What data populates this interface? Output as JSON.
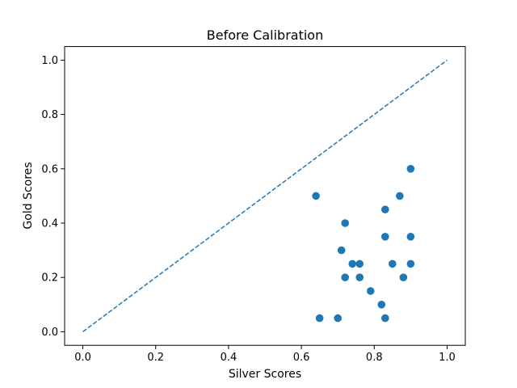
{
  "chart_data": {
    "type": "scatter",
    "title": "Before Calibration",
    "xlabel": "Silver Scores",
    "ylabel": "Gold Scores",
    "xlim": [
      -0.05,
      1.05
    ],
    "ylim": [
      -0.05,
      1.05
    ],
    "xticks": [
      0.0,
      0.2,
      0.4,
      0.6,
      0.8,
      1.0
    ],
    "yticks": [
      0.0,
      0.2,
      0.4,
      0.6,
      0.8,
      1.0
    ],
    "xtick_labels": [
      "0.0",
      "0.2",
      "0.4",
      "0.6",
      "0.8",
      "1.0"
    ],
    "ytick_labels": [
      "0.0",
      "0.2",
      "0.4",
      "0.6",
      "0.8",
      "1.0"
    ],
    "grid": false,
    "series": [
      {
        "marker_color": "#1f77b4",
        "points": [
          {
            "x": 0.64,
            "y": 0.5
          },
          {
            "x": 0.65,
            "y": 0.05
          },
          {
            "x": 0.7,
            "y": 0.05
          },
          {
            "x": 0.71,
            "y": 0.3
          },
          {
            "x": 0.72,
            "y": 0.4
          },
          {
            "x": 0.72,
            "y": 0.2
          },
          {
            "x": 0.74,
            "y": 0.25
          },
          {
            "x": 0.76,
            "y": 0.25
          },
          {
            "x": 0.76,
            "y": 0.2
          },
          {
            "x": 0.79,
            "y": 0.15
          },
          {
            "x": 0.82,
            "y": 0.1
          },
          {
            "x": 0.83,
            "y": 0.45
          },
          {
            "x": 0.83,
            "y": 0.35
          },
          {
            "x": 0.83,
            "y": 0.05
          },
          {
            "x": 0.85,
            "y": 0.25
          },
          {
            "x": 0.87,
            "y": 0.5
          },
          {
            "x": 0.88,
            "y": 0.2
          },
          {
            "x": 0.9,
            "y": 0.6
          },
          {
            "x": 0.9,
            "y": 0.35
          },
          {
            "x": 0.9,
            "y": 0.25
          }
        ]
      }
    ],
    "reference_line": {
      "style": "dashed",
      "color": "#1f77b4",
      "from": [
        0.0,
        0.0
      ],
      "to": [
        1.0,
        1.0
      ]
    }
  }
}
